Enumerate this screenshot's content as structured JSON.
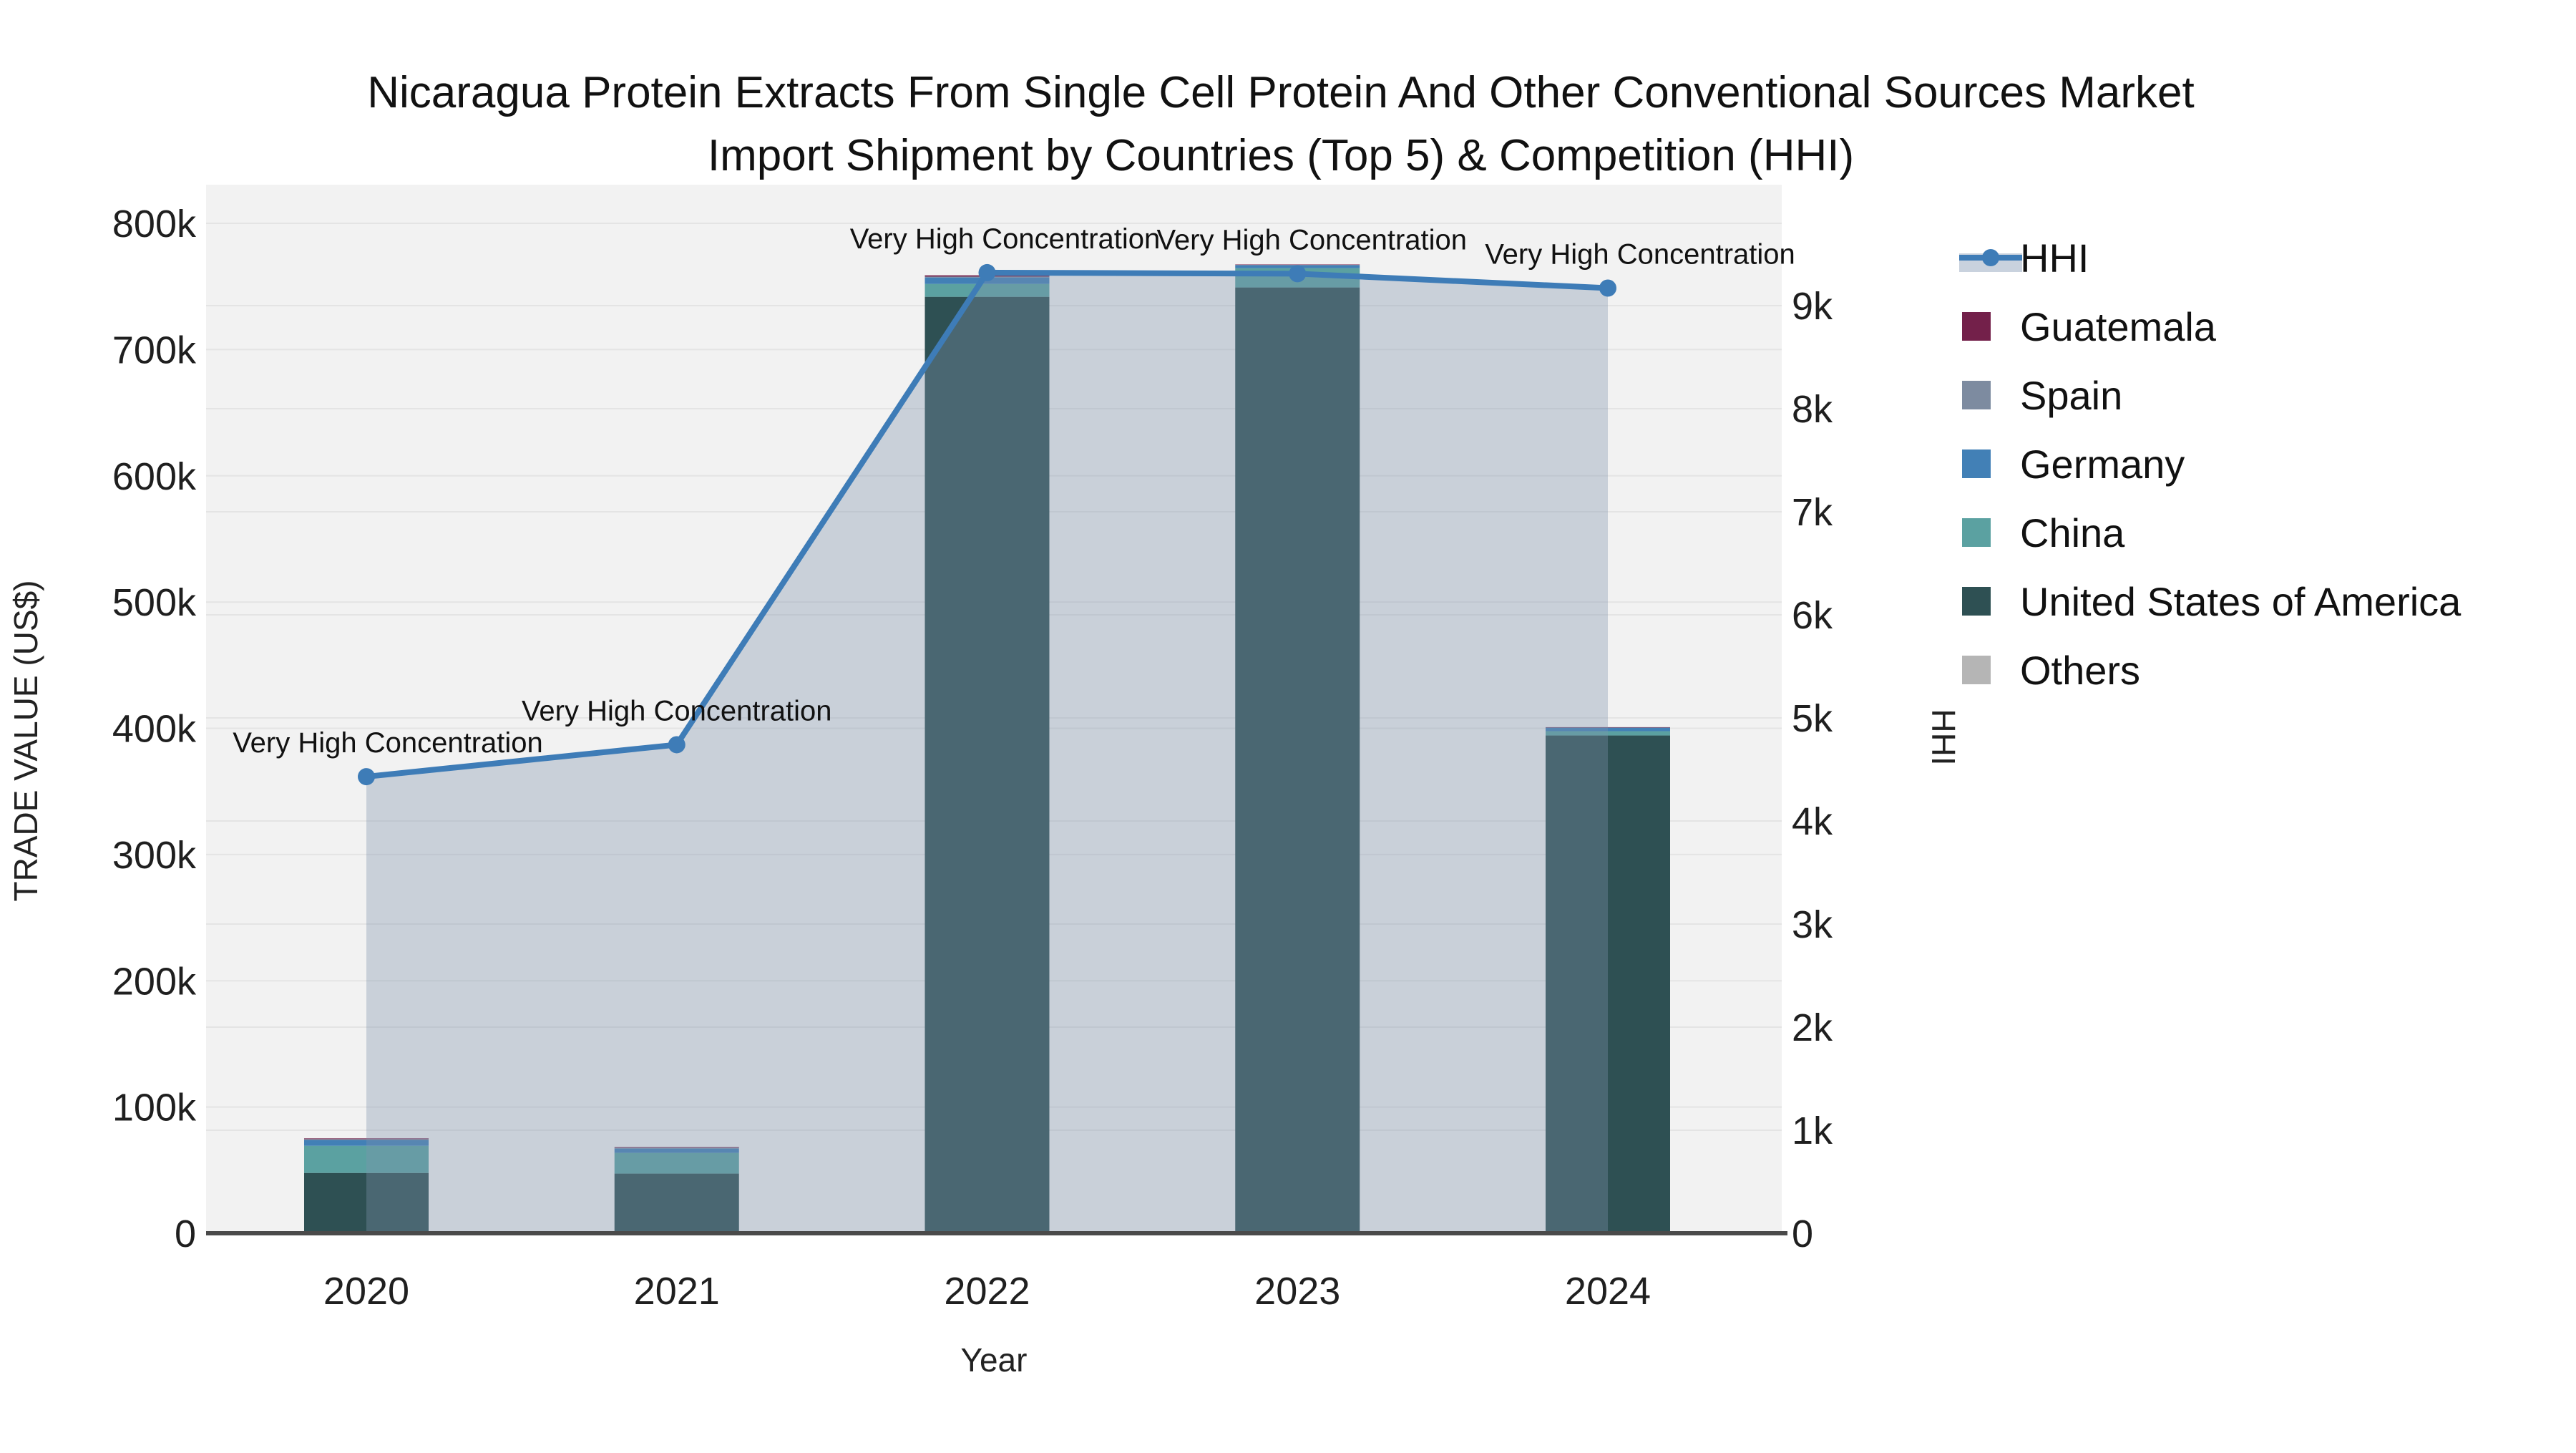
{
  "title": {
    "line1": "Nicaragua Protein Extracts From Single Cell Protein And Other Conventional Sources Market",
    "line2": "Import Shipment by Countries (Top 5) & Competition (HHI)"
  },
  "axes": {
    "x": {
      "title": "Year",
      "categories": [
        "2020",
        "2021",
        "2022",
        "2023",
        "2024"
      ]
    },
    "y_left": {
      "title": "TRADE VALUE (US$)",
      "tick_labels": [
        "0",
        "100k",
        "200k",
        "300k",
        "400k",
        "500k",
        "600k",
        "700k",
        "800k"
      ],
      "tick_values": [
        0,
        100000,
        200000,
        300000,
        400000,
        500000,
        600000,
        700000,
        800000
      ],
      "max": 800000
    },
    "y_right": {
      "title": "HHI",
      "tick_labels": [
        "0",
        "1k",
        "2k",
        "3k",
        "4k",
        "5k",
        "6k",
        "7k",
        "8k",
        "9k"
      ],
      "tick_values": [
        0,
        1000,
        2000,
        3000,
        4000,
        5000,
        6000,
        7000,
        8000,
        9000
      ],
      "max": 9000
    }
  },
  "legend": {
    "items": [
      {
        "label": "HHI",
        "type": "line",
        "color": "#3e7cb7",
        "band_color": "#c9d2de"
      },
      {
        "label": "Guatemala",
        "type": "square",
        "color": "#73204a"
      },
      {
        "label": "Spain",
        "type": "square",
        "color": "#7d8ba0"
      },
      {
        "label": "Germany",
        "type": "square",
        "color": "#4280b6"
      },
      {
        "label": "China",
        "type": "square",
        "color": "#5ba1a1"
      },
      {
        "label": "United States of America",
        "type": "square",
        "color": "#2e5053"
      },
      {
        "label": "Others",
        "type": "square",
        "color": "#b5b5b5"
      }
    ]
  },
  "chart_data": {
    "type": "bar+line",
    "title": "Nicaragua Protein Extracts From Single Cell Protein And Other Conventional Sources Market Import Shipment by Countries (Top 5) & Competition (HHI)",
    "xlabel": "Year",
    "ylabel_left": "TRADE VALUE (US$)",
    "ylabel_right": "HHI",
    "categories": [
      "2020",
      "2021",
      "2022",
      "2023",
      "2024"
    ],
    "bar_mode": "stack",
    "bar_value_unit": "US$",
    "ylim_left": [
      0,
      800000
    ],
    "ylim_right_ticks": [
      0,
      9000
    ],
    "grid": "both-y-axes",
    "legend_position": "right",
    "stack_order_bottom_to_top": [
      "Others",
      "United States of America",
      "China",
      "Germany",
      "Spain",
      "Guatemala"
    ],
    "series": [
      {
        "name": "Guatemala",
        "color": "#73204a",
        "values": [
          600,
          500,
          1000,
          300,
          200
        ]
      },
      {
        "name": "Spain",
        "color": "#7d8ba0",
        "values": [
          800,
          600,
          700,
          300,
          200
        ]
      },
      {
        "name": "Germany",
        "color": "#4280b6",
        "values": [
          4500,
          3400,
          5100,
          2300,
          2800
        ]
      },
      {
        "name": "China",
        "color": "#5ba1a1",
        "values": [
          21500,
          16400,
          10200,
          15300,
          3400
        ]
      },
      {
        "name": "United States of America",
        "color": "#2e5053",
        "values": [
          47600,
          47100,
          741600,
          749000,
          394100
        ]
      },
      {
        "name": "Others",
        "color": "#b5b5b5",
        "values": [
          200,
          200,
          200,
          200,
          200
        ]
      }
    ],
    "bar_totals": [
      75200,
      68200,
      758800,
      767400,
      400700
    ],
    "line_series": {
      "name": "HHI",
      "axis": "right",
      "color": "#3e7cb7",
      "fill": "tozeroy",
      "fill_color": "rgba(125,145,173,0.35)",
      "values": [
        4430,
        4740,
        9320,
        9310,
        9170
      ]
    },
    "annotations": [
      {
        "text": "Very High Concentration",
        "category": "2020",
        "hhi": 4430
      },
      {
        "text": "Very High Concentration",
        "category": "2021",
        "hhi": 4740
      },
      {
        "text": "Very High Concentration",
        "category": "2022",
        "hhi": 9320
      },
      {
        "text": "Very High Concentration",
        "category": "2023",
        "hhi": 9310
      },
      {
        "text": "Very High Concentration",
        "category": "2024",
        "hhi": 9170
      }
    ],
    "plot_bg_color": "#f2f2f2",
    "gridline_color": "#e4e4e4",
    "axis_line_color": "#4a4a4a"
  }
}
